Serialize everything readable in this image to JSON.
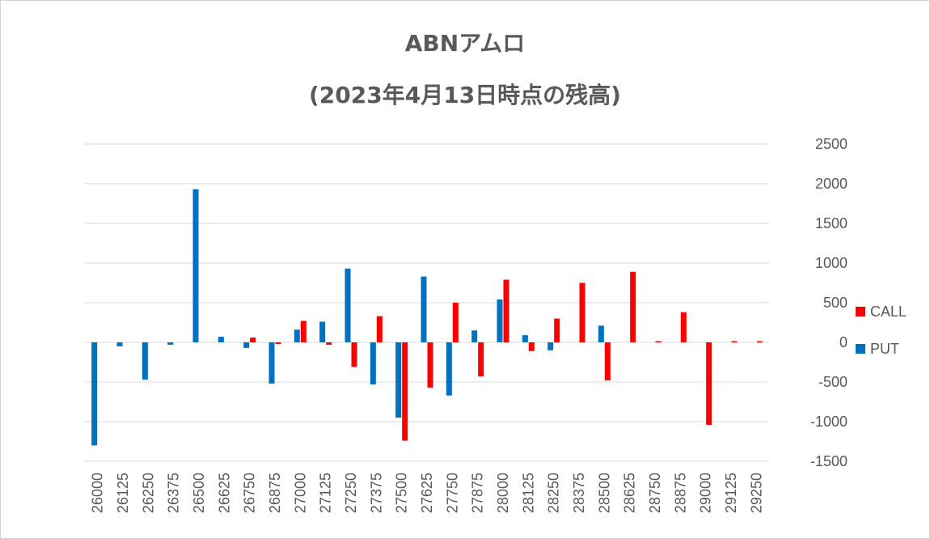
{
  "chart_data": {
    "type": "bar",
    "title": [
      "ABNアムロ",
      "(2023年4月13日時点の残高)"
    ],
    "xlabel": "",
    "ylabel": "",
    "ylim": [
      -1500,
      2500
    ],
    "yticks": [
      2500,
      2000,
      1500,
      1000,
      500,
      0,
      -500,
      -1000,
      -1500
    ],
    "y_axis_position": "right",
    "grid": true,
    "legend_position": "right",
    "categories": [
      "26000",
      "26125",
      "26250",
      "26375",
      "26500",
      "26625",
      "26750",
      "26875",
      "27000",
      "27125",
      "27250",
      "27375",
      "27500",
      "27625",
      "27750",
      "27875",
      "28000",
      "28125",
      "28250",
      "28375",
      "28500",
      "28625",
      "28750",
      "28875",
      "29000",
      "29125",
      "29250"
    ],
    "series": [
      {
        "name": "PUT",
        "color": "#0070C0",
        "values": [
          -1300,
          -50,
          -470,
          -30,
          1930,
          70,
          -70,
          -520,
          160,
          260,
          930,
          -530,
          -950,
          830,
          -670,
          150,
          540,
          90,
          -100,
          0,
          210,
          0,
          0,
          0,
          0,
          0,
          0
        ]
      },
      {
        "name": "CALL",
        "color": "#FF0000",
        "values": [
          0,
          0,
          0,
          0,
          0,
          0,
          60,
          -20,
          270,
          -30,
          -310,
          330,
          -1240,
          -570,
          500,
          -430,
          790,
          -110,
          300,
          750,
          -480,
          890,
          15,
          380,
          -1040,
          15,
          15
        ]
      }
    ]
  }
}
